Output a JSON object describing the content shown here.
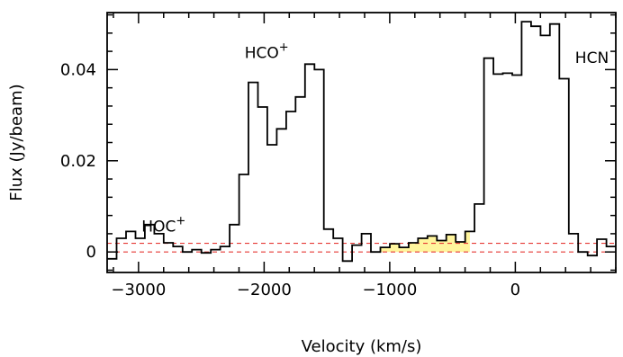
{
  "chart_data": {
    "type": "line",
    "xlabel": "Velocity (km/s)",
    "ylabel": "Flux (Jy/beam)",
    "xlim": [
      -3250,
      800
    ],
    "ylim": [
      -0.0045,
      0.0525
    ],
    "x_ticks": [
      -3000,
      -2000,
      -1000,
      0
    ],
    "x_tick_labels": [
      "−3000",
      "−2000",
      "−1000",
      "0"
    ],
    "y_ticks": [
      0,
      0.02,
      0.04
    ],
    "y_tick_labels": [
      "0",
      "0.02",
      "0.04"
    ],
    "grid": false,
    "series": [
      {
        "style": "step",
        "color": "#000000",
        "bin_width": 75,
        "x": [
          -3212,
          -3137,
          -3062,
          -2987,
          -2912,
          -2837,
          -2762,
          -2687,
          -2612,
          -2537,
          -2462,
          -2387,
          -2312,
          -2237,
          -2162,
          -2087,
          -2012,
          -1937,
          -1862,
          -1787,
          -1712,
          -1637,
          -1562,
          -1487,
          -1412,
          -1337,
          -1262,
          -1187,
          -1112,
          -1037,
          -962,
          -887,
          -812,
          -737,
          -662,
          -587,
          -512,
          -437,
          -362,
          -287,
          -212,
          -137,
          -62,
          13,
          88,
          163,
          238,
          313,
          388,
          463,
          538,
          613,
          688,
          763
        ],
        "y": [
          -0.0015,
          0.003,
          0.0045,
          0.003,
          0.006,
          0.004,
          0.002,
          0.0012,
          0.0,
          0.0005,
          -0.0002,
          0.0005,
          0.0012,
          0.006,
          0.017,
          0.0372,
          0.0318,
          0.0235,
          0.027,
          0.0308,
          0.034,
          0.0412,
          0.04,
          0.005,
          0.003,
          -0.002,
          0.0015,
          0.004,
          0.0,
          0.001,
          0.0018,
          0.001,
          0.002,
          0.003,
          0.0035,
          0.0025,
          0.0038,
          0.0022,
          0.0045,
          0.0105,
          0.0425,
          0.039,
          0.0392,
          0.0388,
          0.0505,
          0.0495,
          0.0475,
          0.05,
          0.038,
          0.004,
          0.0,
          -0.0008,
          0.0028,
          0.0012
        ]
      }
    ],
    "highlight": {
      "x_from": -1150,
      "x_to": -362,
      "color": "#fff59d"
    },
    "reference_lines": [
      {
        "y": 0,
        "color": "#e53935",
        "style": "dashed"
      },
      {
        "y": 0.0019,
        "color": "#e53935",
        "style": "dashed"
      }
    ],
    "annotations": [
      {
        "label": "HOC",
        "sup": "+",
        "x": -2800,
        "y": 0.0045
      },
      {
        "label": "HCO",
        "sup": "+",
        "x": -1980,
        "y": 0.0425
      },
      {
        "label": "HCN",
        "sup": "",
        "x": 610,
        "y": 0.0415
      }
    ]
  }
}
